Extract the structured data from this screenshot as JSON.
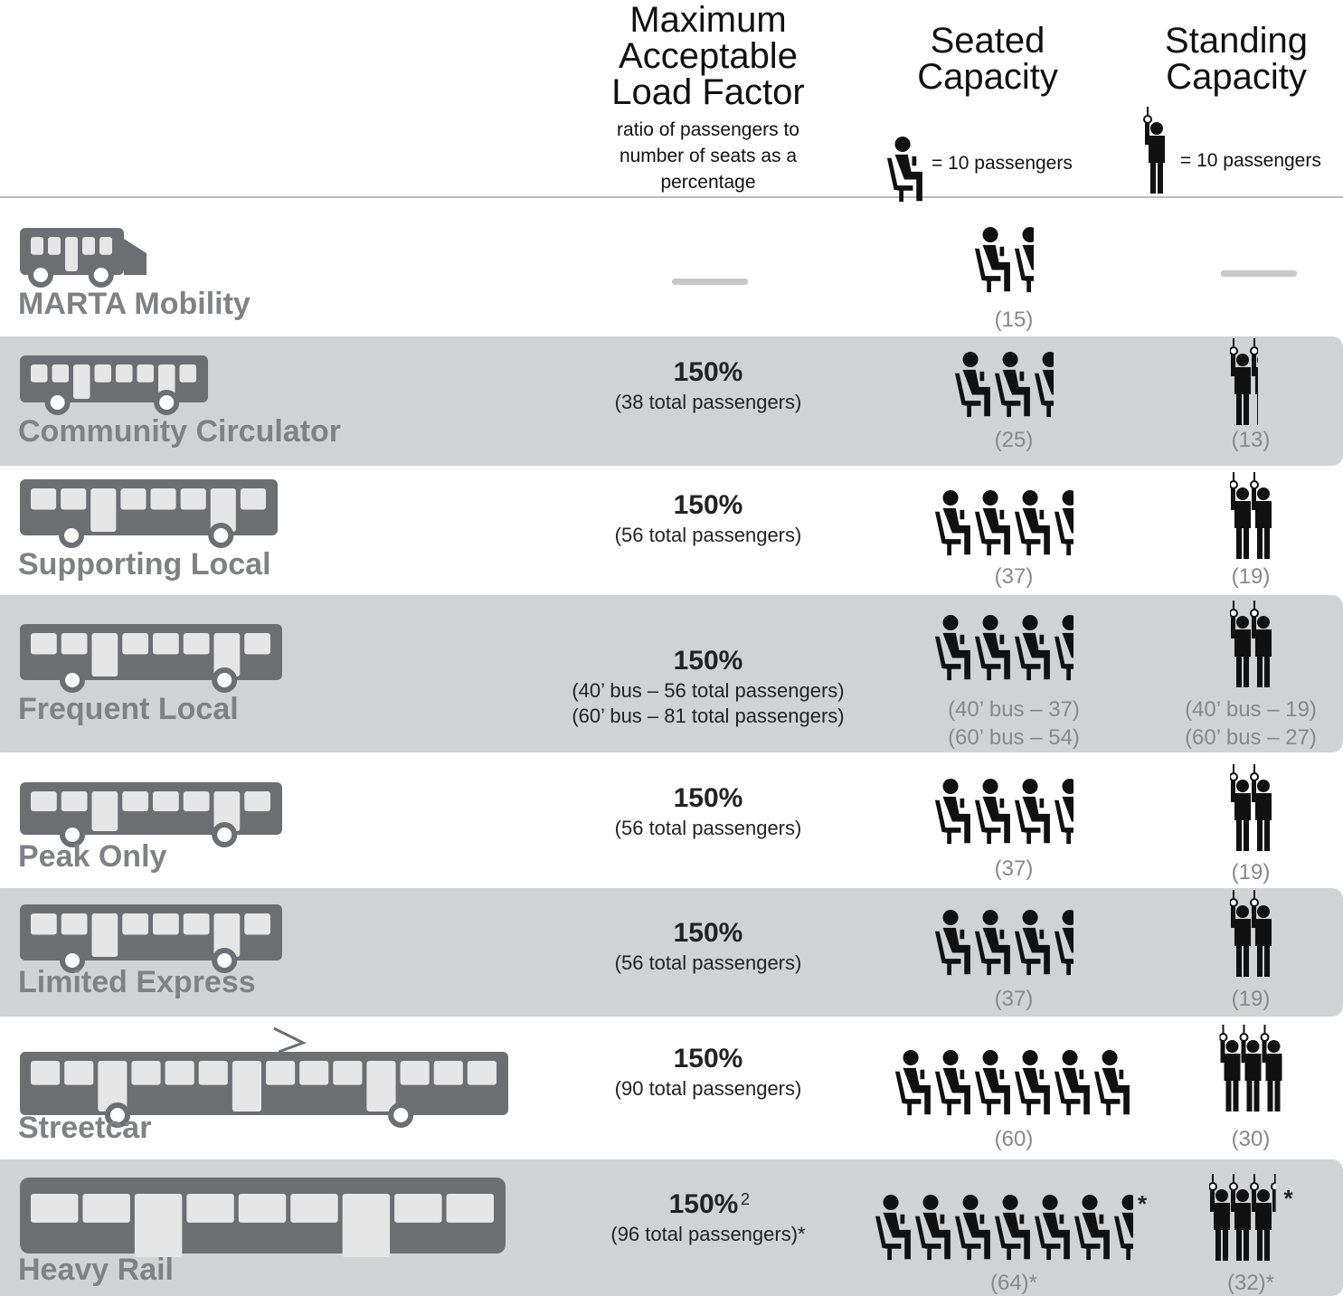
{
  "header": {
    "load": {
      "title_lines": [
        "Maximum",
        "Acceptable",
        "Load Factor"
      ],
      "note_lines": [
        "ratio of passengers to",
        "number of seats as a",
        "percentage"
      ]
    },
    "seated": {
      "title_lines": [
        "Seated",
        "Capacity"
      ],
      "legend": "= 10 passengers"
    },
    "standing": {
      "title_lines": [
        "Standing",
        "Capacity"
      ],
      "legend": "= 10 passengers"
    }
  },
  "rows": [
    {
      "name": "MARTA Mobility",
      "seated": [
        "(15)"
      ]
    },
    {
      "name": "Community Circulator",
      "load": {
        "value": "150%",
        "details": [
          "(38 total passengers)"
        ]
      },
      "seated": [
        "(25)"
      ],
      "standing": [
        "(13)"
      ]
    },
    {
      "name": "Supporting Local",
      "load": {
        "value": "150%",
        "details": [
          "(56 total passengers)"
        ]
      },
      "seated": [
        "(37)"
      ],
      "standing": [
        "(19)"
      ]
    },
    {
      "name": "Frequent Local",
      "load": {
        "value": "150%",
        "details": [
          "(40’ bus – 56 total passengers)",
          "(60’ bus – 81 total passengers)"
        ]
      },
      "seated": [
        "(40’ bus – 37)",
        "(60’ bus – 54)"
      ],
      "standing": [
        "(40’ bus – 19)",
        "(60’ bus – 27)"
      ]
    },
    {
      "name": "Peak Only",
      "load": {
        "value": "150%",
        "details": [
          "(56 total passengers)"
        ]
      },
      "seated": [
        "(37)"
      ],
      "standing": [
        "(19)"
      ]
    },
    {
      "name": "Limited Express",
      "load": {
        "value": "150%",
        "details": [
          "(56 total passengers)"
        ]
      },
      "seated": [
        "(37)"
      ],
      "standing": [
        "(19)"
      ]
    },
    {
      "name": "Streetcar",
      "load": {
        "value": "150%",
        "details": [
          "(90 total passengers)"
        ]
      },
      "seated": [
        "(60)"
      ],
      "standing": [
        "(30)"
      ]
    },
    {
      "name": "Heavy Rail",
      "load": {
        "value": "150%",
        "sup": "2",
        "details": [
          "(96 total passengers)*"
        ]
      },
      "seated": [
        "(64)*"
      ],
      "standing": [
        "(32)*"
      ],
      "icon_note": "*"
    }
  ]
}
